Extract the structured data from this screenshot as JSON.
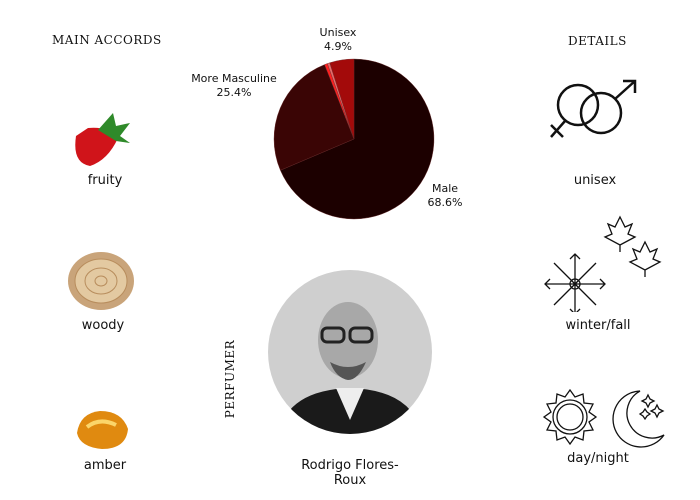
{
  "accords": {
    "title": "MAIN ACCORDS",
    "items": [
      {
        "label": "fruity",
        "icon": "strawberry-image"
      },
      {
        "label": "woody",
        "icon": "wood-slice-image"
      },
      {
        "label": "amber",
        "icon": "amber-image"
      }
    ]
  },
  "chart_data": {
    "type": "pie",
    "slices": [
      {
        "name": "Male",
        "value": 68.6,
        "label": "68.6%",
        "color": "#1c0000"
      },
      {
        "name": "More Masculine",
        "value": 25.4,
        "label": "25.4%",
        "color": "#3a0505"
      },
      {
        "name": "",
        "value": 0.6,
        "label": "",
        "color": "#ff2020"
      },
      {
        "name": "",
        "value": 0.5,
        "label": "",
        "color": "#e86a6a"
      },
      {
        "name": "Unisex",
        "value": 4.9,
        "label": "4.9%",
        "color": "#a30a0a"
      }
    ]
  },
  "perfumer": {
    "title": "PERFUMER",
    "name": "Rodrigo Flores-Roux"
  },
  "details": {
    "title": "DETAILS",
    "items": [
      {
        "label": "unisex",
        "icon": "gender-icon"
      },
      {
        "label": "winter/fall",
        "icon": "snowflake-maple-icon"
      },
      {
        "label": "day/night",
        "icon": "sun-moon-icon"
      }
    ]
  }
}
